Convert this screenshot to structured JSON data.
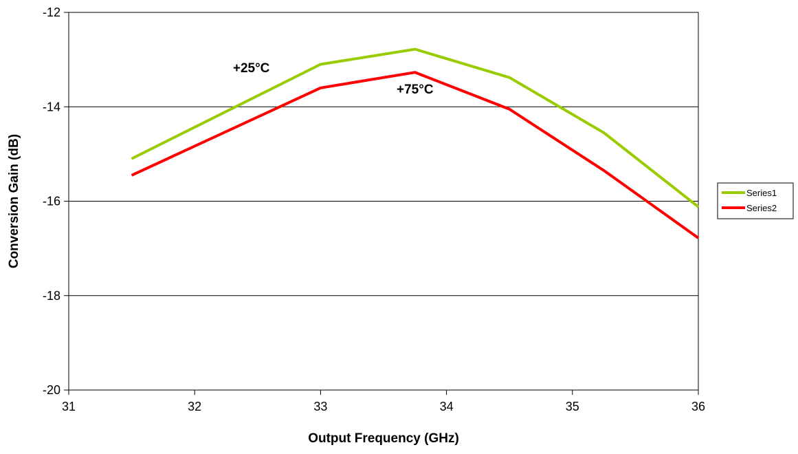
{
  "chart_data": {
    "type": "line",
    "title": "",
    "xlabel": "Output Frequency (GHz)",
    "ylabel": "Conversion Gain (dB)",
    "xlim": [
      31,
      36
    ],
    "ylim": [
      -20,
      -12
    ],
    "x_ticks": [
      "31",
      "32",
      "33",
      "34",
      "35",
      "36"
    ],
    "y_ticks": [
      "-12",
      "-14",
      "-16",
      "-18",
      "-20"
    ],
    "grid": "horizontal",
    "legend_position": "right",
    "series": [
      {
        "name": "Series1",
        "color": "#99CC00",
        "x": [
          31.5,
          33,
          33.75,
          34.5,
          35.25,
          36
        ],
        "y": [
          -15.1,
          -13.1,
          -12.78,
          -13.38,
          -14.55,
          -16.12
        ]
      },
      {
        "name": "Series2",
        "color": "#FF0000",
        "x": [
          31.5,
          33,
          33.75,
          34.5,
          35.25,
          36
        ],
        "y": [
          -15.45,
          -13.6,
          -13.27,
          -14.05,
          -15.35,
          -16.78
        ]
      }
    ],
    "annotations": [
      {
        "text": "+25°C",
        "x": 32.45,
        "y": -13.27
      },
      {
        "text": "+75°C",
        "x": 33.75,
        "y": -13.72
      }
    ]
  }
}
